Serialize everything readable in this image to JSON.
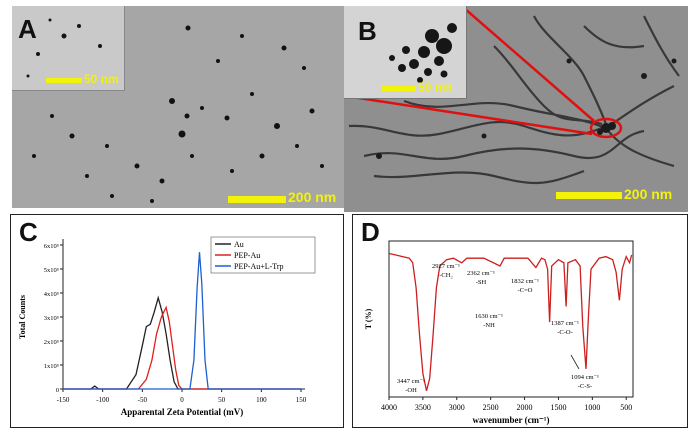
{
  "panels": {
    "a": {
      "letter": "A",
      "inset_scale": "50 nm",
      "scale": "200 nm"
    },
    "b": {
      "letter": "B",
      "inset_scale": "50 nm",
      "scale": "200 nm"
    },
    "c": {
      "letter": "C"
    },
    "d": {
      "letter": "D"
    }
  },
  "chart_data": [
    {
      "type": "line",
      "panel": "C",
      "xlabel": "Apparental Zeta Potential (mV)",
      "ylabel": "Total Counts",
      "xlim": [
        -150,
        150
      ],
      "ylim": [
        0,
        600000
      ],
      "x_ticks": [
        -150,
        -100,
        -50,
        0,
        50,
        100,
        150
      ],
      "y_ticks": [
        "0",
        "1x10⁵",
        "2x10⁵",
        "3x10⁵",
        "4x10⁵",
        "5x10⁵",
        "6x10⁵"
      ],
      "legend_position": "top-right",
      "series": [
        {
          "name": "Au",
          "color": "#222222",
          "points": [
            [
              -150,
              0
            ],
            [
              -115,
              0
            ],
            [
              -110,
              12000
            ],
            [
              -105,
              0
            ],
            [
              -70,
              0
            ],
            [
              -58,
              60000
            ],
            [
              -50,
              180000
            ],
            [
              -45,
              260000
            ],
            [
              -40,
              270000
            ],
            [
              -35,
              320000
            ],
            [
              -30,
              380000
            ],
            [
              -25,
              320000
            ],
            [
              -20,
              230000
            ],
            [
              -15,
              120000
            ],
            [
              -10,
              30000
            ],
            [
              -5,
              0
            ],
            [
              150,
              0
            ]
          ]
        },
        {
          "name": "PEP-Au",
          "color": "#e02020",
          "points": [
            [
              -150,
              0
            ],
            [
              -55,
              0
            ],
            [
              -45,
              40000
            ],
            [
              -38,
              120000
            ],
            [
              -32,
              230000
            ],
            [
              -26,
              300000
            ],
            [
              -20,
              340000
            ],
            [
              -16,
              280000
            ],
            [
              -12,
              180000
            ],
            [
              -8,
              80000
            ],
            [
              -4,
              15000
            ],
            [
              0,
              0
            ],
            [
              150,
              0
            ]
          ]
        },
        {
          "name": "PEP-Au+L-Trp",
          "color": "#1f5fd0",
          "points": [
            [
              -150,
              0
            ],
            [
              10,
              0
            ],
            [
              15,
              120000
            ],
            [
              19,
              420000
            ],
            [
              22,
              570000
            ],
            [
              25,
              440000
            ],
            [
              29,
              120000
            ],
            [
              33,
              0
            ],
            [
              150,
              0
            ]
          ]
        }
      ]
    },
    {
      "type": "line",
      "panel": "D",
      "xlabel": "wavenumber (cm⁻¹)",
      "ylabel": "T (%)",
      "xlim": [
        4000,
        400
      ],
      "x_ticks": [
        4000,
        3500,
        3000,
        2500,
        2000,
        1500,
        1000,
        500
      ],
      "series": [
        {
          "name": "",
          "color": "#cc1f1f",
          "points": [
            [
              4000,
              92
            ],
            [
              3900,
              91
            ],
            [
              3800,
              90
            ],
            [
              3700,
              89
            ],
            [
              3650,
              86
            ],
            [
              3600,
              70
            ],
            [
              3550,
              40
            ],
            [
              3500,
              15
            ],
            [
              3447,
              4
            ],
            [
              3400,
              12
            ],
            [
              3350,
              40
            ],
            [
              3300,
              70
            ],
            [
              3250,
              84
            ],
            [
              3150,
              88
            ],
            [
              3050,
              89
            ],
            [
              2927,
              86
            ],
            [
              2850,
              89
            ],
            [
              2600,
              89
            ],
            [
              2362,
              84
            ],
            [
              2300,
              89
            ],
            [
              1950,
              89
            ],
            [
              1832,
              83
            ],
            [
              1750,
              89
            ],
            [
              1700,
              88
            ],
            [
              1660,
              82
            ],
            [
              1630,
              48
            ],
            [
              1600,
              84
            ],
            [
              1500,
              88
            ],
            [
              1420,
              86
            ],
            [
              1387,
              58
            ],
            [
              1360,
              86
            ],
            [
              1250,
              88
            ],
            [
              1180,
              84
            ],
            [
              1140,
              45
            ],
            [
              1094,
              18
            ],
            [
              1060,
              50
            ],
            [
              1020,
              82
            ],
            [
              900,
              89
            ],
            [
              800,
              90
            ],
            [
              700,
              88
            ],
            [
              650,
              80
            ],
            [
              600,
              62
            ],
            [
              560,
              82
            ],
            [
              500,
              90
            ],
            [
              450,
              86
            ],
            [
              420,
              91
            ]
          ]
        }
      ],
      "annotations": [
        {
          "text": "3447 cm⁻¹",
          "sub": "-OH"
        },
        {
          "text": "2927 cm⁻¹",
          "sub": "-CH₂"
        },
        {
          "text": "2362 cm⁻¹",
          "sub": "-SH"
        },
        {
          "text": "1832 cm⁻¹",
          "sub": "-C=O"
        },
        {
          "text": "1630 cm⁻¹",
          "sub": "-NH"
        },
        {
          "text": "1387 cm⁻¹",
          "sub": "-C-O-"
        },
        {
          "text": "1094 cm⁻¹",
          "sub": "-C-S-"
        }
      ]
    }
  ]
}
